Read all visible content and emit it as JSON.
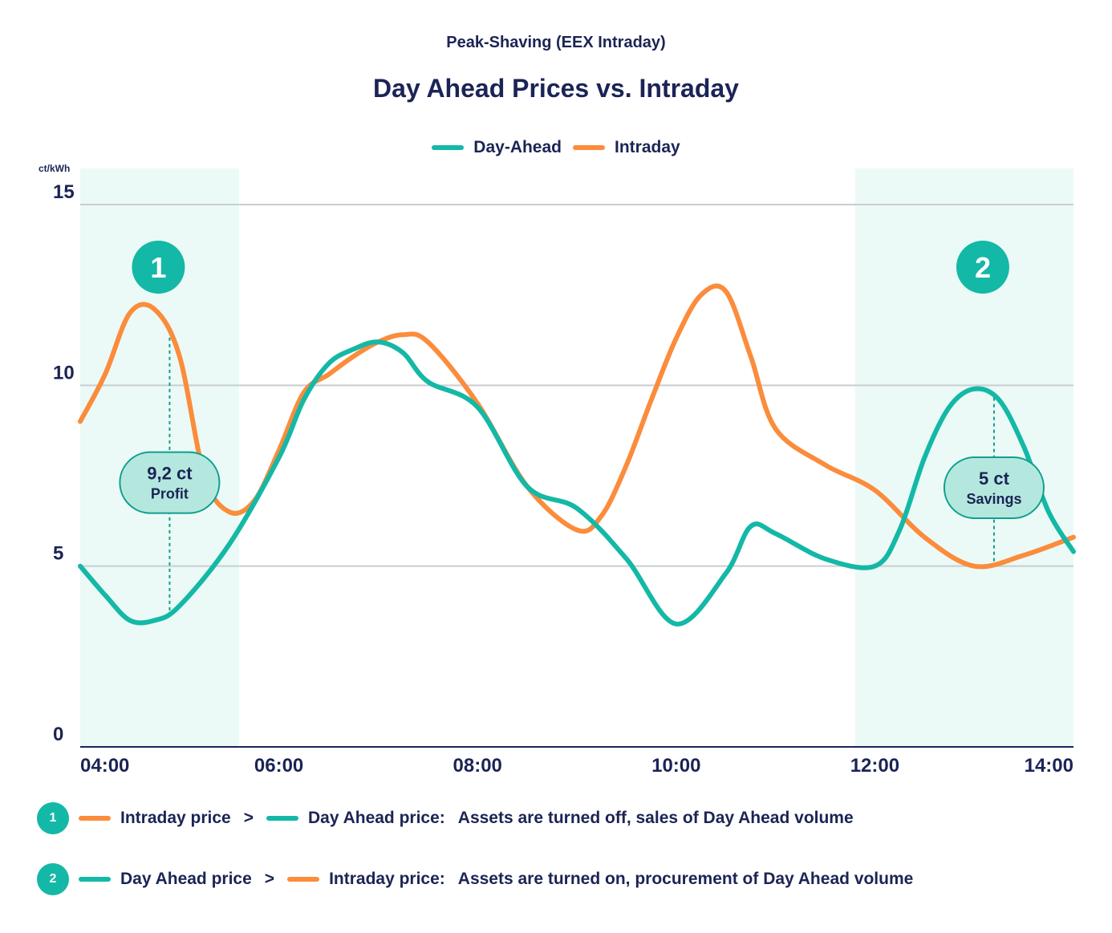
{
  "header": {
    "subtitle": "Peak-Shaving (EEX Intraday)",
    "title": "Day Ahead Prices vs. Intraday"
  },
  "legend": [
    {
      "name": "Day-Ahead",
      "color": "#14b8a6"
    },
    {
      "name": "Intraday",
      "color": "#fb8c3c"
    }
  ],
  "chart_data": {
    "type": "line",
    "ylabel": "ct/kWh",
    "ylim": [
      0,
      15
    ],
    "yticks": [
      0,
      5,
      10,
      15
    ],
    "xlim": [
      4.0,
      14.0
    ],
    "xticks": [
      {
        "value": 4.0,
        "label": "04:00"
      },
      {
        "value": 6.0,
        "label": "06:00"
      },
      {
        "value": 8.0,
        "label": "08:00"
      },
      {
        "value": 10.0,
        "label": "10:00"
      },
      {
        "value": 12.0,
        "label": "12:00"
      },
      {
        "value": 14.0,
        "label": "14:00"
      }
    ],
    "grid": true,
    "legend_position": "top-center",
    "series": [
      {
        "name": "Day-Ahead",
        "color": "#14b8a6",
        "x": [
          4.0,
          4.25,
          4.5,
          4.75,
          5.0,
          5.5,
          6.0,
          6.25,
          6.5,
          6.75,
          7.0,
          7.25,
          7.5,
          8.0,
          8.5,
          9.0,
          9.5,
          10.0,
          10.5,
          10.75,
          11.0,
          11.5,
          12.0,
          12.25,
          12.5,
          12.75,
          13.0,
          13.25,
          13.5,
          13.75,
          14.0
        ],
        "y": [
          5.0,
          4.2,
          3.5,
          3.5,
          3.9,
          5.6,
          8.0,
          9.6,
          10.6,
          11.0,
          11.2,
          10.9,
          10.1,
          9.4,
          7.2,
          6.6,
          5.2,
          3.4,
          4.8,
          6.1,
          5.9,
          5.2,
          5.0,
          6.0,
          8.0,
          9.4,
          9.9,
          9.6,
          8.3,
          6.5,
          5.4
        ]
      },
      {
        "name": "Intraday",
        "color": "#fb8c3c",
        "x": [
          4.0,
          4.25,
          4.5,
          4.75,
          5.0,
          5.25,
          5.5,
          5.75,
          6.0,
          6.25,
          6.5,
          6.75,
          7.0,
          7.25,
          7.5,
          8.0,
          8.5,
          9.0,
          9.25,
          9.5,
          9.75,
          10.0,
          10.25,
          10.5,
          10.75,
          11.0,
          11.5,
          12.0,
          12.5,
          13.0,
          13.5,
          14.0
        ],
        "y": [
          9.0,
          10.3,
          12.0,
          12.1,
          10.8,
          7.5,
          6.5,
          6.8,
          8.2,
          9.8,
          10.3,
          10.8,
          11.2,
          11.4,
          11.2,
          9.5,
          7.2,
          6.0,
          6.4,
          7.8,
          9.6,
          11.3,
          12.5,
          12.6,
          10.8,
          8.8,
          7.8,
          7.1,
          5.8,
          5.0,
          5.3,
          5.8
        ]
      }
    ],
    "highlight_regions": [
      {
        "id": "1",
        "x_start": 4.0,
        "x_end": 5.6,
        "marker_x": 4.9,
        "label_value": "9,2 ct",
        "label_text": "Profit"
      },
      {
        "id": "2",
        "x_start": 11.8,
        "x_end": 14.0,
        "marker_x": 13.2,
        "label_value": "5 ct",
        "label_text": "Savings"
      }
    ]
  },
  "notes": [
    {
      "badge": "1",
      "first_series": "Intraday",
      "first": "Intraday price",
      "symbol": ">",
      "second_series": "Day-Ahead",
      "second": "Day Ahead price:",
      "explanation": "Assets are turned off, sales of Day Ahead volume"
    },
    {
      "badge": "2",
      "first_series": "Day-Ahead",
      "first": "Day Ahead price",
      "symbol": ">",
      "second_series": "Intraday",
      "second": "Intraday price:",
      "explanation": "Assets are turned on, procurement of Day Ahead volume"
    }
  ]
}
